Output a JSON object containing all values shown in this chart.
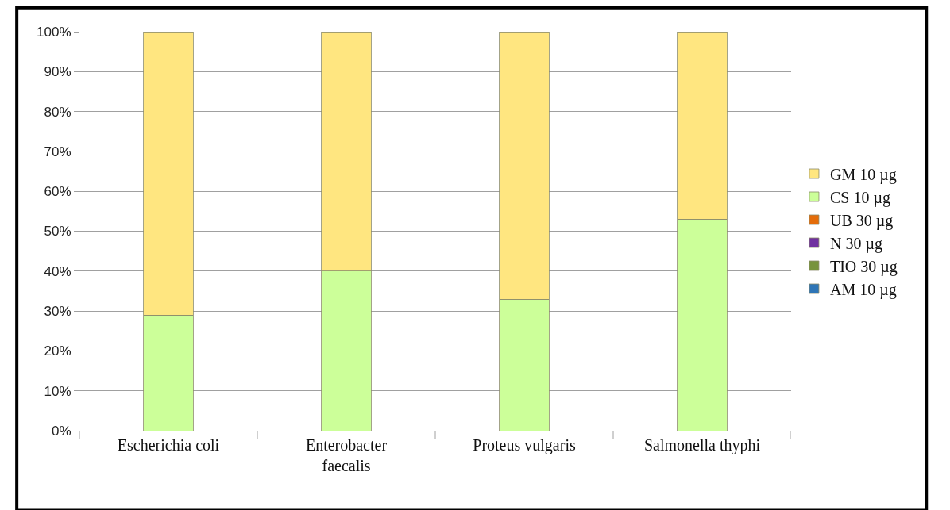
{
  "chart_data": {
    "type": "bar",
    "stacked": true,
    "categories": [
      "Escherichia coli",
      "Enterobacter faecalis",
      "Proteus vulgaris",
      "Salmonella thyphi"
    ],
    "series": [
      {
        "name": "AM 10 µg",
        "color": "#2e75b6",
        "values": [
          0,
          0,
          0,
          0
        ]
      },
      {
        "name": "TIO 30 µg",
        "color": "#77933c",
        "values": [
          0,
          0,
          0,
          0
        ]
      },
      {
        "name": "N 30 µg",
        "color": "#7030a0",
        "values": [
          0,
          0,
          0,
          0
        ]
      },
      {
        "name": "UB 30 µg",
        "color": "#e46c0a",
        "values": [
          0,
          0,
          0,
          0
        ]
      },
      {
        "name": "CS 10 µg",
        "color": "#ccff99",
        "values": [
          29,
          40,
          33,
          53
        ]
      },
      {
        "name": "GM 10 µg",
        "color": "#ffe680",
        "values": [
          71,
          60,
          67,
          47
        ]
      }
    ],
    "ylim": [
      0,
      100
    ],
    "yticks": [
      {
        "value": 0,
        "label": "0%"
      },
      {
        "value": 10,
        "label": "10%"
      },
      {
        "value": 20,
        "label": "20%"
      },
      {
        "value": 30,
        "label": "30%"
      },
      {
        "value": 40,
        "label": "40%"
      },
      {
        "value": 50,
        "label": "50%"
      },
      {
        "value": 60,
        "label": "60%"
      },
      {
        "value": 70,
        "label": "70%"
      },
      {
        "value": 80,
        "label": "80%"
      },
      {
        "value": 90,
        "label": "90%"
      },
      {
        "value": 100,
        "label": "100%"
      }
    ],
    "grid": "y",
    "legend": "right"
  }
}
